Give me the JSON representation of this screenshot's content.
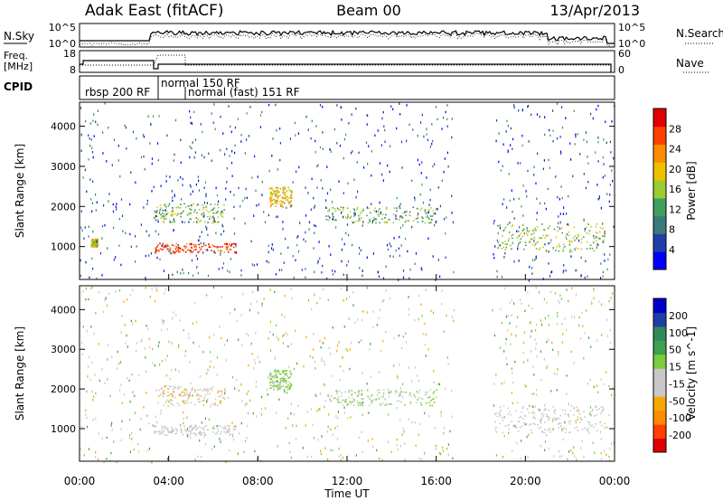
{
  "header": {
    "station": "Adak East (fitACF)",
    "beam": "Beam 00",
    "date": "13/Apr/2013"
  },
  "nsky_panel": {
    "left_label": "N.Sky",
    "right_label": "N.Search",
    "left_ticks": [
      "10^5",
      "10^0"
    ],
    "right_ticks": [
      "10^5",
      "10^0"
    ]
  },
  "freq_panel": {
    "left_label_line1": "Freq.",
    "left_label_line2": "[MHz]",
    "right_label": "Nave",
    "left_ticks": [
      "18",
      "8"
    ],
    "right_ticks": [
      "60",
      "0"
    ]
  },
  "cpid_panel": {
    "label": "CPID",
    "modes": [
      "rbsp 200 RF",
      "normal 150 RF",
      "normal (fast) 151 RF"
    ]
  },
  "colors": {
    "scale": [
      "#0000ff",
      "#1e3fa8",
      "#3a7a7a",
      "#3f9f5f",
      "#9acd32",
      "#f0c000",
      "#ff8c00",
      "#ff4000",
      "#e00000"
    ],
    "velocity_scale": [
      "#e00000",
      "#ff4000",
      "#ff8c00",
      "#f7a800",
      "#c8c8c8",
      "#c8c8c8",
      "#7ccd3c",
      "#3fa04f",
      "#2e8b57",
      "#1e3fa8",
      "#0000cc"
    ],
    "ground": "#c0c0c0"
  },
  "chart_data": [
    {
      "type": "heatmap",
      "title": "Power",
      "ylabel": "Slant Range [km]",
      "colorbar_label": "Power [dB]",
      "colorbar_ticks": [
        "4",
        "8",
        "12",
        "16",
        "20",
        "24",
        "28"
      ],
      "colorbar_range": [
        0,
        32
      ],
      "y_ticks": [
        1000,
        2000,
        3000,
        4000
      ],
      "ylim": [
        180,
        4600
      ],
      "xlim": [
        0,
        24
      ],
      "x_ticks": [
        "00:00",
        "04:00",
        "08:00",
        "12:00",
        "16:00",
        "20:00",
        "00:00"
      ],
      "echo_bands": [
        {
          "t": [
            0.5,
            0.8
          ],
          "range": [
            1000,
            1200
          ],
          "power": 18
        },
        {
          "t": [
            3.3,
            7.0
          ],
          "range": [
            850,
            1100
          ],
          "power": 28
        },
        {
          "t": [
            3.3,
            6.5
          ],
          "range": [
            1600,
            2100
          ],
          "power": 14
        },
        {
          "t": [
            8.5,
            9.5
          ],
          "range": [
            2000,
            2500
          ],
          "power": 20
        },
        {
          "t": [
            11.0,
            16.0
          ],
          "range": [
            1600,
            2000
          ],
          "power": 14
        },
        {
          "t": [
            18.6,
            23.6
          ],
          "range": [
            900,
            1600
          ],
          "power": 16
        }
      ]
    },
    {
      "type": "heatmap",
      "title": "Velocity",
      "ylabel": "Slant Range [km]",
      "colorbar_label": "Velocity [m s^-1]",
      "colorbar_ticks": [
        "-200",
        "-100",
        "-50",
        "-15",
        "15",
        "50",
        "100",
        "200"
      ],
      "colorbar_range": [
        -250,
        250
      ],
      "y_ticks": [
        1000,
        2000,
        3000,
        4000
      ],
      "ylim": [
        180,
        4600
      ],
      "xlim": [
        0,
        24
      ],
      "x_ticks": [
        "00:00",
        "04:00",
        "08:00",
        "12:00",
        "16:00",
        "20:00",
        "00:00"
      ],
      "xlabel": "Time UT",
      "echo_bands": [
        {
          "t": [
            3.3,
            7.0
          ],
          "range": [
            850,
            1100
          ],
          "velocity": 0
        },
        {
          "t": [
            3.5,
            6.5
          ],
          "range": [
            1600,
            2100
          ],
          "velocity": -60
        },
        {
          "t": [
            8.5,
            9.5
          ],
          "range": [
            2000,
            2500
          ],
          "velocity": 30
        },
        {
          "t": [
            11.0,
            16.0
          ],
          "range": [
            1600,
            2000
          ],
          "velocity": 20
        },
        {
          "t": [
            18.6,
            23.6
          ],
          "range": [
            900,
            1600
          ],
          "velocity": 0
        }
      ]
    }
  ]
}
